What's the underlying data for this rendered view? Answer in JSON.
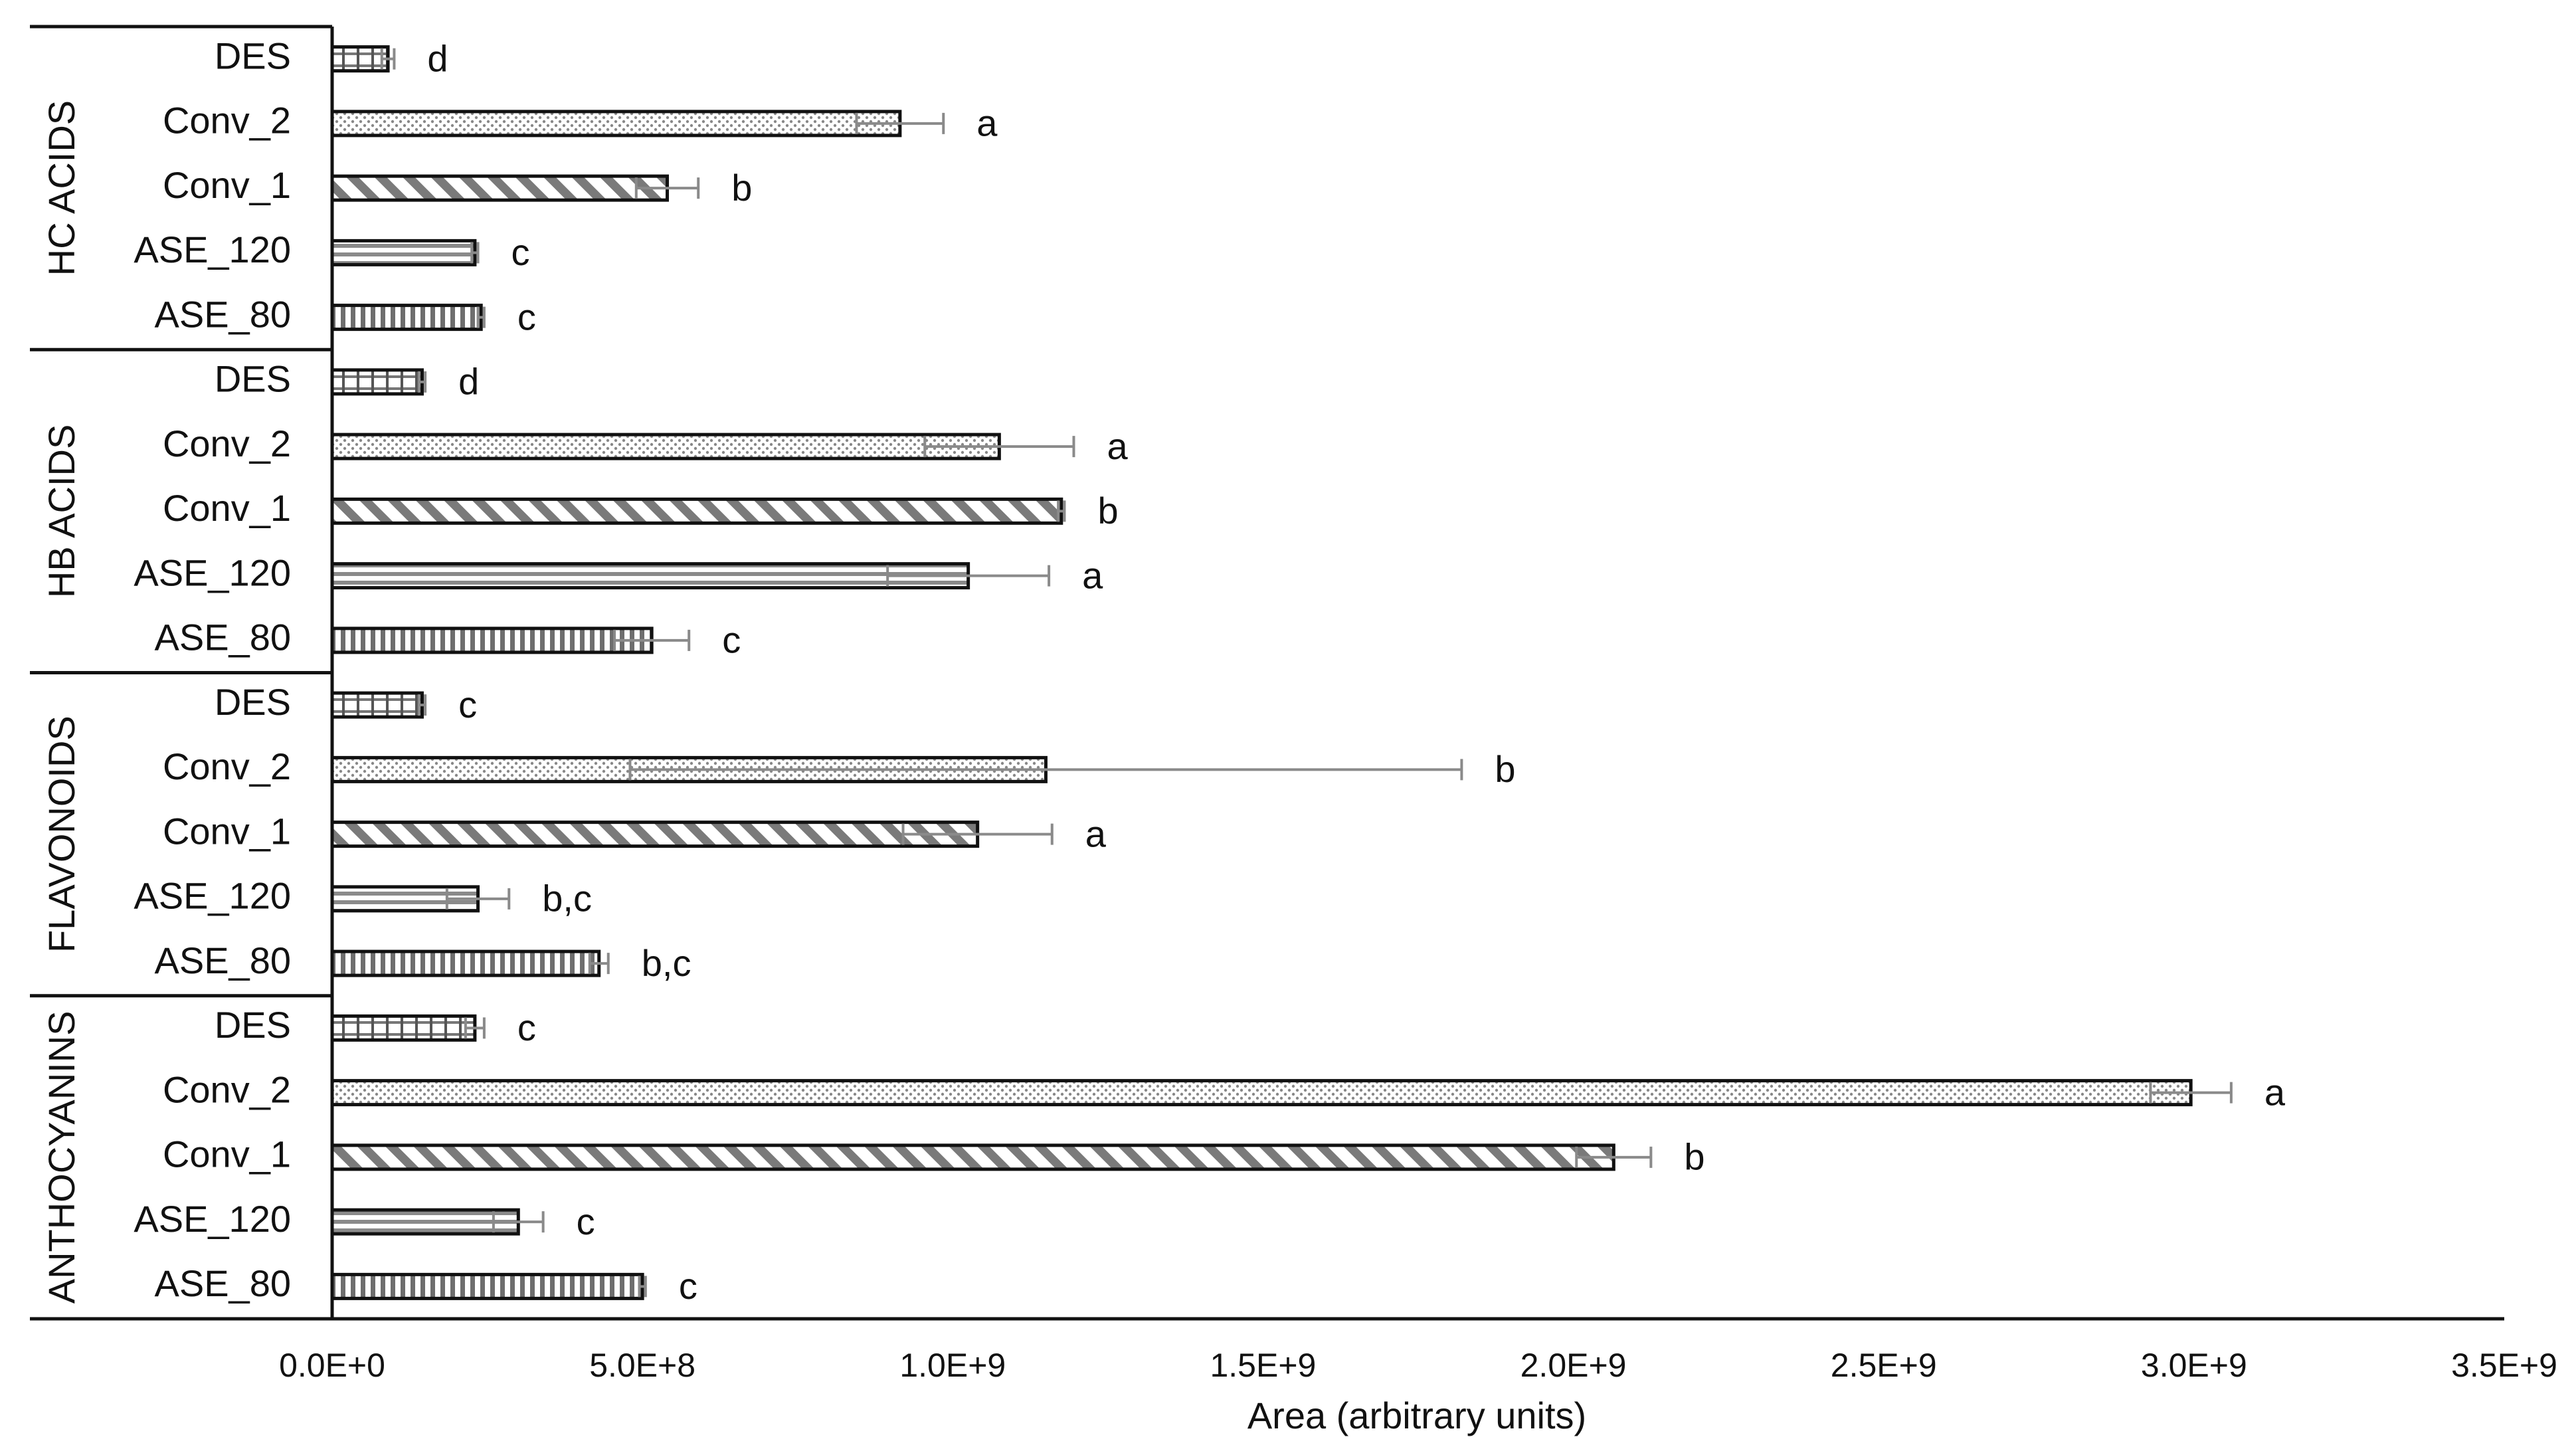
{
  "chart_data": {
    "type": "bar",
    "orientation": "horizontal",
    "xlabel": "Area (arbitrary units)",
    "ylabel": "",
    "xlim": [
      0,
      3500000000
    ],
    "xticks": [
      0,
      500000000,
      1000000000,
      1500000000,
      2000000000,
      2500000000,
      3000000000,
      3500000000
    ],
    "xtick_labels": [
      "0.0E+0",
      "5.0E+8",
      "1.0E+9",
      "1.5E+9",
      "2.0E+9",
      "2.5E+9",
      "3.0E+9",
      "3.5E+9"
    ],
    "grid": false,
    "legend": "none",
    "groups": [
      {
        "name": "HC ACIDS",
        "bars": [
          {
            "label": "DES",
            "value": 90000000,
            "error": 10000000,
            "letter": "d",
            "pattern": "grid"
          },
          {
            "label": "Conv_2",
            "value": 915000000,
            "error": 70000000,
            "letter": "a",
            "pattern": "dots"
          },
          {
            "label": "Conv_1",
            "value": 540000000,
            "error": 50000000,
            "letter": "b",
            "pattern": "diag"
          },
          {
            "label": "ASE_120",
            "value": 230000000,
            "error": 5000000,
            "letter": "c",
            "pattern": "hlines"
          },
          {
            "label": "ASE_80",
            "value": 240000000,
            "error": 5000000,
            "letter": "c",
            "pattern": "vlines"
          }
        ]
      },
      {
        "name": "HB ACIDS",
        "bars": [
          {
            "label": "DES",
            "value": 145000000,
            "error": 5000000,
            "letter": "d",
            "pattern": "grid"
          },
          {
            "label": "Conv_2",
            "value": 1075000000,
            "error": 120000000,
            "letter": "a",
            "pattern": "dots"
          },
          {
            "label": "Conv_1",
            "value": 1175000000,
            "error": 5000000,
            "letter": "b",
            "pattern": "diag"
          },
          {
            "label": "ASE_120",
            "value": 1025000000,
            "error": 130000000,
            "letter": "a",
            "pattern": "hlines"
          },
          {
            "label": "ASE_80",
            "value": 515000000,
            "error": 60000000,
            "letter": "c",
            "pattern": "vlines"
          }
        ]
      },
      {
        "name": "FLAVONOIDS",
        "bars": [
          {
            "label": "DES",
            "value": 145000000,
            "error": 5000000,
            "letter": "c",
            "pattern": "grid"
          },
          {
            "label": "Conv_2",
            "value": 1150000000,
            "error": 670000000,
            "letter": "b",
            "pattern": "dots"
          },
          {
            "label": "Conv_1",
            "value": 1040000000,
            "error": 120000000,
            "letter": "a",
            "pattern": "diag"
          },
          {
            "label": "ASE_120",
            "value": 235000000,
            "error": 50000000,
            "letter": "b,c",
            "pattern": "hlines"
          },
          {
            "label": "ASE_80",
            "value": 430000000,
            "error": 15000000,
            "letter": "b,c",
            "pattern": "vlines"
          }
        ]
      },
      {
        "name": "ANTHOCYANINS",
        "bars": [
          {
            "label": "DES",
            "value": 230000000,
            "error": 15000000,
            "letter": "c",
            "pattern": "grid"
          },
          {
            "label": "Conv_2",
            "value": 2995000000,
            "error": 65000000,
            "letter": "a",
            "pattern": "dots"
          },
          {
            "label": "Conv_1",
            "value": 2065000000,
            "error": 60000000,
            "letter": "b",
            "pattern": "diag"
          },
          {
            "label": "ASE_120",
            "value": 300000000,
            "error": 40000000,
            "letter": "c",
            "pattern": "hlines"
          },
          {
            "label": "ASE_80",
            "value": 500000000,
            "error": 5000000,
            "letter": "c",
            "pattern": "vlines"
          }
        ]
      }
    ]
  }
}
